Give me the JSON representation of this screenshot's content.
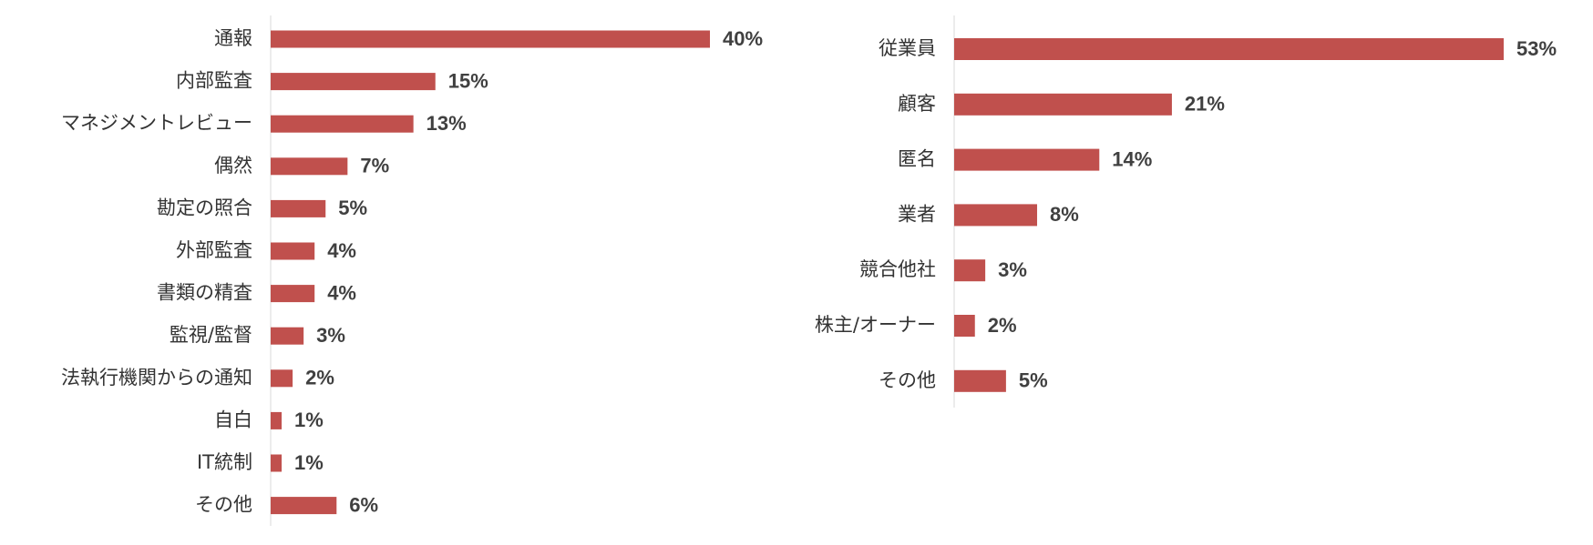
{
  "chart_data": [
    {
      "type": "bar",
      "orientation": "horizontal",
      "color": "#c0504d",
      "categories": [
        "通報",
        "内部監査",
        "マネジメントレビュー",
        "偶然",
        "勘定の照合",
        "外部監査",
        "書類の精査",
        "監視/監督",
        "法執行機関からの通知",
        "自白",
        "IT統制",
        "その他"
      ],
      "values": [
        40,
        15,
        13,
        7,
        5,
        4,
        4,
        3,
        2,
        1,
        1,
        6
      ],
      "value_labels": [
        "40%",
        "15%",
        "13%",
        "7%",
        "5%",
        "4%",
        "4%",
        "3%",
        "2%",
        "1%",
        "1%",
        "6%"
      ]
    },
    {
      "type": "bar",
      "orientation": "horizontal",
      "color": "#c0504d",
      "categories": [
        "従業員",
        "顧客",
        "匿名",
        "業者",
        "競合他社",
        "株主/オーナー",
        "その他"
      ],
      "values": [
        53,
        21,
        14,
        8,
        3,
        2,
        5
      ],
      "value_labels": [
        "53%",
        "21%",
        "14%",
        "8%",
        "3%",
        "2%",
        "5%"
      ]
    }
  ]
}
